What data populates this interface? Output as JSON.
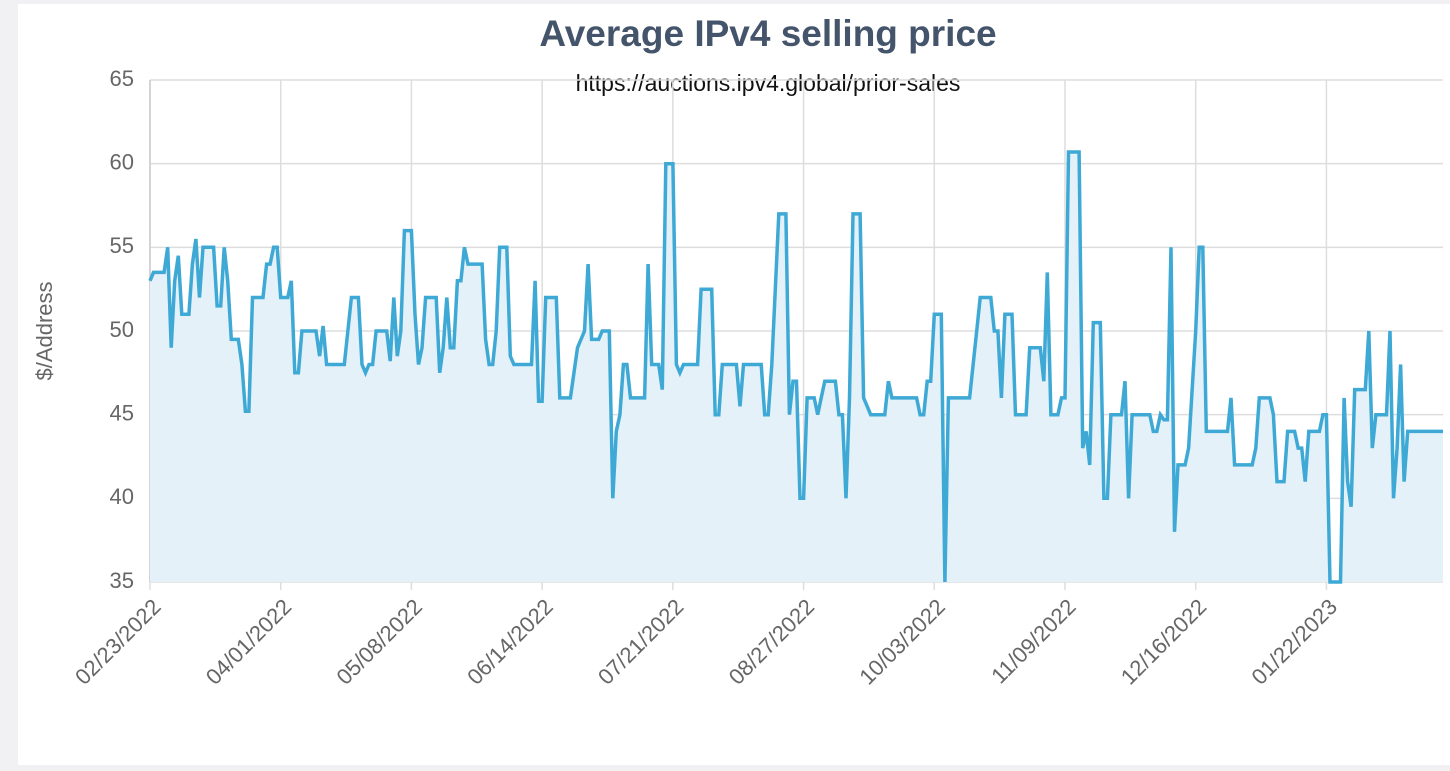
{
  "chart_data": {
    "type": "line",
    "title": "Average IPv4 selling price",
    "subtitle": "https://auctions.ipv4.global/prior-sales",
    "y_label": "$/Address",
    "color": "#3fa9d6",
    "fill": "#e4f1f9",
    "grid": true,
    "ylim": [
      35,
      65
    ],
    "yticks": [
      35,
      40,
      45,
      50,
      55,
      60,
      65
    ],
    "xlim": [
      "02/23/2022",
      "02/24/2023"
    ],
    "xticks": [
      "02/23/2022",
      "04/01/2022",
      "05/08/2022",
      "06/14/2022",
      "07/21/2022",
      "08/27/2022",
      "10/03/2022",
      "11/09/2022",
      "12/16/2022",
      "01/22/2023"
    ],
    "x": [
      "02/23/2022",
      "02/24/2022",
      "02/27/2022",
      "02/28/2022",
      "03/01/2022",
      "03/02/2022",
      "03/03/2022",
      "03/04/2022",
      "03/06/2022",
      "03/07/2022",
      "03/08/2022",
      "03/09/2022",
      "03/10/2022",
      "03/13/2022",
      "03/14/2022",
      "03/15/2022",
      "03/16/2022",
      "03/17/2022",
      "03/18/2022",
      "03/20/2022",
      "03/21/2022",
      "03/22/2022",
      "03/23/2022",
      "03/24/2022",
      "03/27/2022",
      "03/28/2022",
      "03/29/2022",
      "03/30/2022",
      "03/31/2022",
      "04/01/2022",
      "04/03/2022",
      "04/04/2022",
      "04/05/2022",
      "04/06/2022",
      "04/07/2022",
      "04/11/2022",
      "04/12/2022",
      "04/13/2022",
      "04/14/2022",
      "04/19/2022",
      "04/21/2022",
      "04/23/2022",
      "04/24/2022",
      "04/25/2022",
      "04/26/2022",
      "04/27/2022",
      "04/28/2022",
      "05/01/2022",
      "05/02/2022",
      "05/03/2022",
      "05/04/2022",
      "05/05/2022",
      "05/06/2022",
      "05/08/2022",
      "05/09/2022",
      "05/10/2022",
      "05/11/2022",
      "05/12/2022",
      "05/15/2022",
      "05/16/2022",
      "05/17/2022",
      "05/18/2022",
      "05/19/2022",
      "05/20/2022",
      "05/21/2022",
      "05/22/2022",
      "05/23/2022",
      "05/24/2022",
      "05/28/2022",
      "05/29/2022",
      "05/30/2022",
      "05/31/2022",
      "06/01/2022",
      "06/02/2022",
      "06/04/2022",
      "06/05/2022",
      "06/06/2022",
      "06/11/2022",
      "06/12/2022",
      "06/13/2022",
      "06/14/2022",
      "06/15/2022",
      "06/18/2022",
      "06/19/2022",
      "06/22/2022",
      "06/24/2022",
      "06/26/2022",
      "06/27/2022",
      "06/28/2022",
      "06/30/2022",
      "07/01/2022",
      "07/03/2022",
      "07/04/2022",
      "07/05/2022",
      "07/06/2022",
      "07/07/2022",
      "07/08/2022",
      "07/09/2022",
      "07/13/2022",
      "07/14/2022",
      "07/15/2022",
      "07/17/2022",
      "07/18/2022",
      "07/19/2022",
      "07/21/2022",
      "07/22/2022",
      "07/23/2022",
      "07/24/2022",
      "07/28/2022",
      "07/29/2022",
      "08/01/2022",
      "08/02/2022",
      "08/03/2022",
      "08/04/2022",
      "08/08/2022",
      "08/09/2022",
      "08/10/2022",
      "08/15/2022",
      "08/16/2022",
      "08/17/2022",
      "08/18/2022",
      "08/20/2022",
      "08/22/2022",
      "08/23/2022",
      "08/24/2022",
      "08/25/2022",
      "08/26/2022",
      "08/27/2022",
      "08/28/2022",
      "08/30/2022",
      "08/31/2022",
      "09/01/2022",
      "09/02/2022",
      "09/05/2022",
      "09/06/2022",
      "09/07/2022",
      "09/08/2022",
      "09/09/2022",
      "09/10/2022",
      "09/12/2022",
      "09/13/2022",
      "09/14/2022",
      "09/15/2022",
      "09/19/2022",
      "09/20/2022",
      "09/21/2022",
      "09/28/2022",
      "09/29/2022",
      "09/30/2022",
      "10/01/2022",
      "10/02/2022",
      "10/03/2022",
      "10/05/2022",
      "10/06/2022",
      "10/07/2022",
      "10/13/2022",
      "10/15/2022",
      "10/16/2022",
      "10/19/2022",
      "10/20/2022",
      "10/21/2022",
      "10/22/2022",
      "10/23/2022",
      "10/25/2022",
      "10/26/2022",
      "10/29/2022",
      "10/30/2022",
      "11/02/2022",
      "11/03/2022",
      "11/04/2022",
      "11/05/2022",
      "11/07/2022",
      "11/08/2022",
      "11/09/2022",
      "11/10/2022",
      "11/13/2022",
      "11/14/2022",
      "11/15/2022",
      "11/16/2022",
      "11/17/2022",
      "11/19/2022",
      "11/20/2022",
      "11/21/2022",
      "11/22/2022",
      "11/25/2022",
      "11/26/2022",
      "11/27/2022",
      "11/28/2022",
      "12/03/2022",
      "12/04/2022",
      "12/05/2022",
      "12/06/2022",
      "12/07/2022",
      "12/08/2022",
      "12/09/2022",
      "12/10/2022",
      "12/11/2022",
      "12/13/2022",
      "12/14/2022",
      "12/16/2022",
      "12/17/2022",
      "12/18/2022",
      "12/19/2022",
      "12/25/2022",
      "12/26/2022",
      "12/27/2022",
      "01/01/2023",
      "01/02/2023",
      "01/03/2023",
      "01/06/2023",
      "01/07/2023",
      "01/08/2023",
      "01/10/2023",
      "01/11/2023",
      "01/13/2023",
      "01/14/2023",
      "01/15/2023",
      "01/16/2023",
      "01/17/2023",
      "01/20/2023",
      "01/21/2023",
      "01/22/2023",
      "01/23/2023",
      "01/26/2023",
      "01/27/2023",
      "01/28/2023",
      "01/29/2023",
      "01/30/2023",
      "02/02/2023",
      "02/03/2023",
      "02/04/2023",
      "02/05/2023",
      "02/08/2023",
      "02/09/2023",
      "02/10/2023",
      "02/11/2023",
      "02/12/2023",
      "02/13/2023",
      "02/14/2023",
      "02/24/2023"
    ],
    "values": [
      53,
      53.5,
      53.5,
      55,
      49,
      53,
      54.5,
      51,
      51,
      54,
      55.5,
      52,
      55,
      55,
      51.5,
      51.5,
      55,
      53,
      49.5,
      49.5,
      48,
      45.2,
      45.2,
      52,
      52,
      54,
      54,
      55,
      55,
      52,
      52,
      53,
      47.5,
      47.5,
      50,
      50,
      48.5,
      50.3,
      48,
      48,
      52,
      52,
      48,
      47.5,
      48,
      48,
      50,
      50,
      48.2,
      52,
      48.5,
      50,
      56,
      56,
      51,
      48,
      49,
      52,
      52,
      47.5,
      49,
      52,
      49,
      49,
      53,
      53,
      55,
      54,
      54,
      49.5,
      48,
      48,
      50,
      55,
      55,
      48.5,
      48,
      48,
      53,
      45.8,
      45.8,
      52,
      52,
      46,
      46,
      49,
      50,
      54,
      49.5,
      49.5,
      50,
      50,
      40,
      44,
      45,
      48,
      48,
      46,
      46,
      54,
      48,
      48,
      46.5,
      60,
      60,
      48,
      47.5,
      48,
      48,
      52.5,
      52.5,
      45,
      45,
      48,
      48,
      45.5,
      48,
      48,
      45,
      45,
      48,
      57,
      57,
      45,
      47,
      47,
      40,
      40,
      46,
      46,
      45,
      46,
      47,
      47,
      45,
      45,
      40,
      46,
      57,
      57,
      46,
      45.5,
      45,
      45,
      47,
      46,
      46,
      45,
      45,
      47,
      47,
      51,
      51,
      35,
      46,
      46,
      50,
      52,
      52,
      50,
      50,
      46,
      51,
      51,
      45,
      45,
      49,
      49,
      47,
      53.5,
      45,
      45,
      46,
      46,
      60.7,
      60.7,
      43,
      44,
      42,
      50.5,
      50.5,
      40,
      40,
      45,
      45,
      47,
      40,
      45,
      45,
      44,
      44,
      45,
      44.7,
      44.7,
      55,
      38,
      42,
      42,
      43,
      50,
      55,
      55,
      44,
      44,
      46,
      42,
      42,
      43,
      46,
      46,
      45,
      41,
      41,
      44,
      44,
      43,
      43,
      41,
      44,
      44,
      45,
      45,
      35,
      35,
      46,
      41,
      39.5,
      46.5,
      46.5,
      50,
      43,
      45,
      45,
      50,
      40,
      43,
      48,
      41,
      44,
      44
    ]
  }
}
